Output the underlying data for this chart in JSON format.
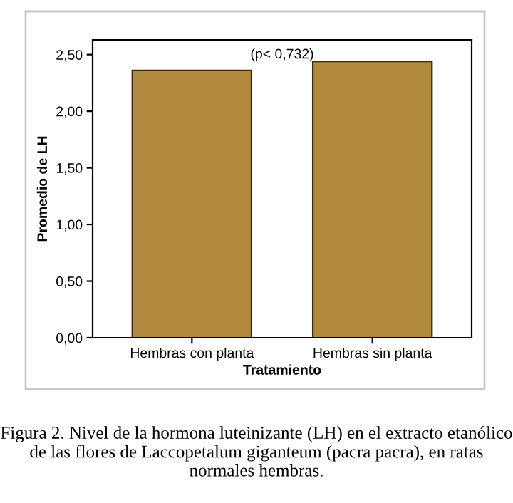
{
  "chart_data": {
    "type": "bar",
    "xlabel": "Tratamiento",
    "ylabel": "Promedio de LH",
    "categories": [
      "Hembras con planta",
      "Hembras sin planta"
    ],
    "values": [
      2.36,
      2.44
    ],
    "color": "#b0883e",
    "ylim": [
      0,
      2.63
    ],
    "yticks": [
      {
        "value": 0,
        "label": "0,00"
      },
      {
        "value": 0.5,
        "label": "0,50"
      },
      {
        "value": 1,
        "label": "1,00"
      },
      {
        "value": 1.5,
        "label": "1,50"
      },
      {
        "value": 2,
        "label": "2,00"
      },
      {
        "value": 2.5,
        "label": "2,50"
      }
    ],
    "grid": false,
    "legend": false,
    "annotations": [
      "(p< 0,732)",
      "Figura 2. Nivel de la hormona luteinizante (LH) en el extracto etanólico de las flores de Laccopetalum giganteum (pacra pacra), en ratas normales hembras."
    ]
  }
}
